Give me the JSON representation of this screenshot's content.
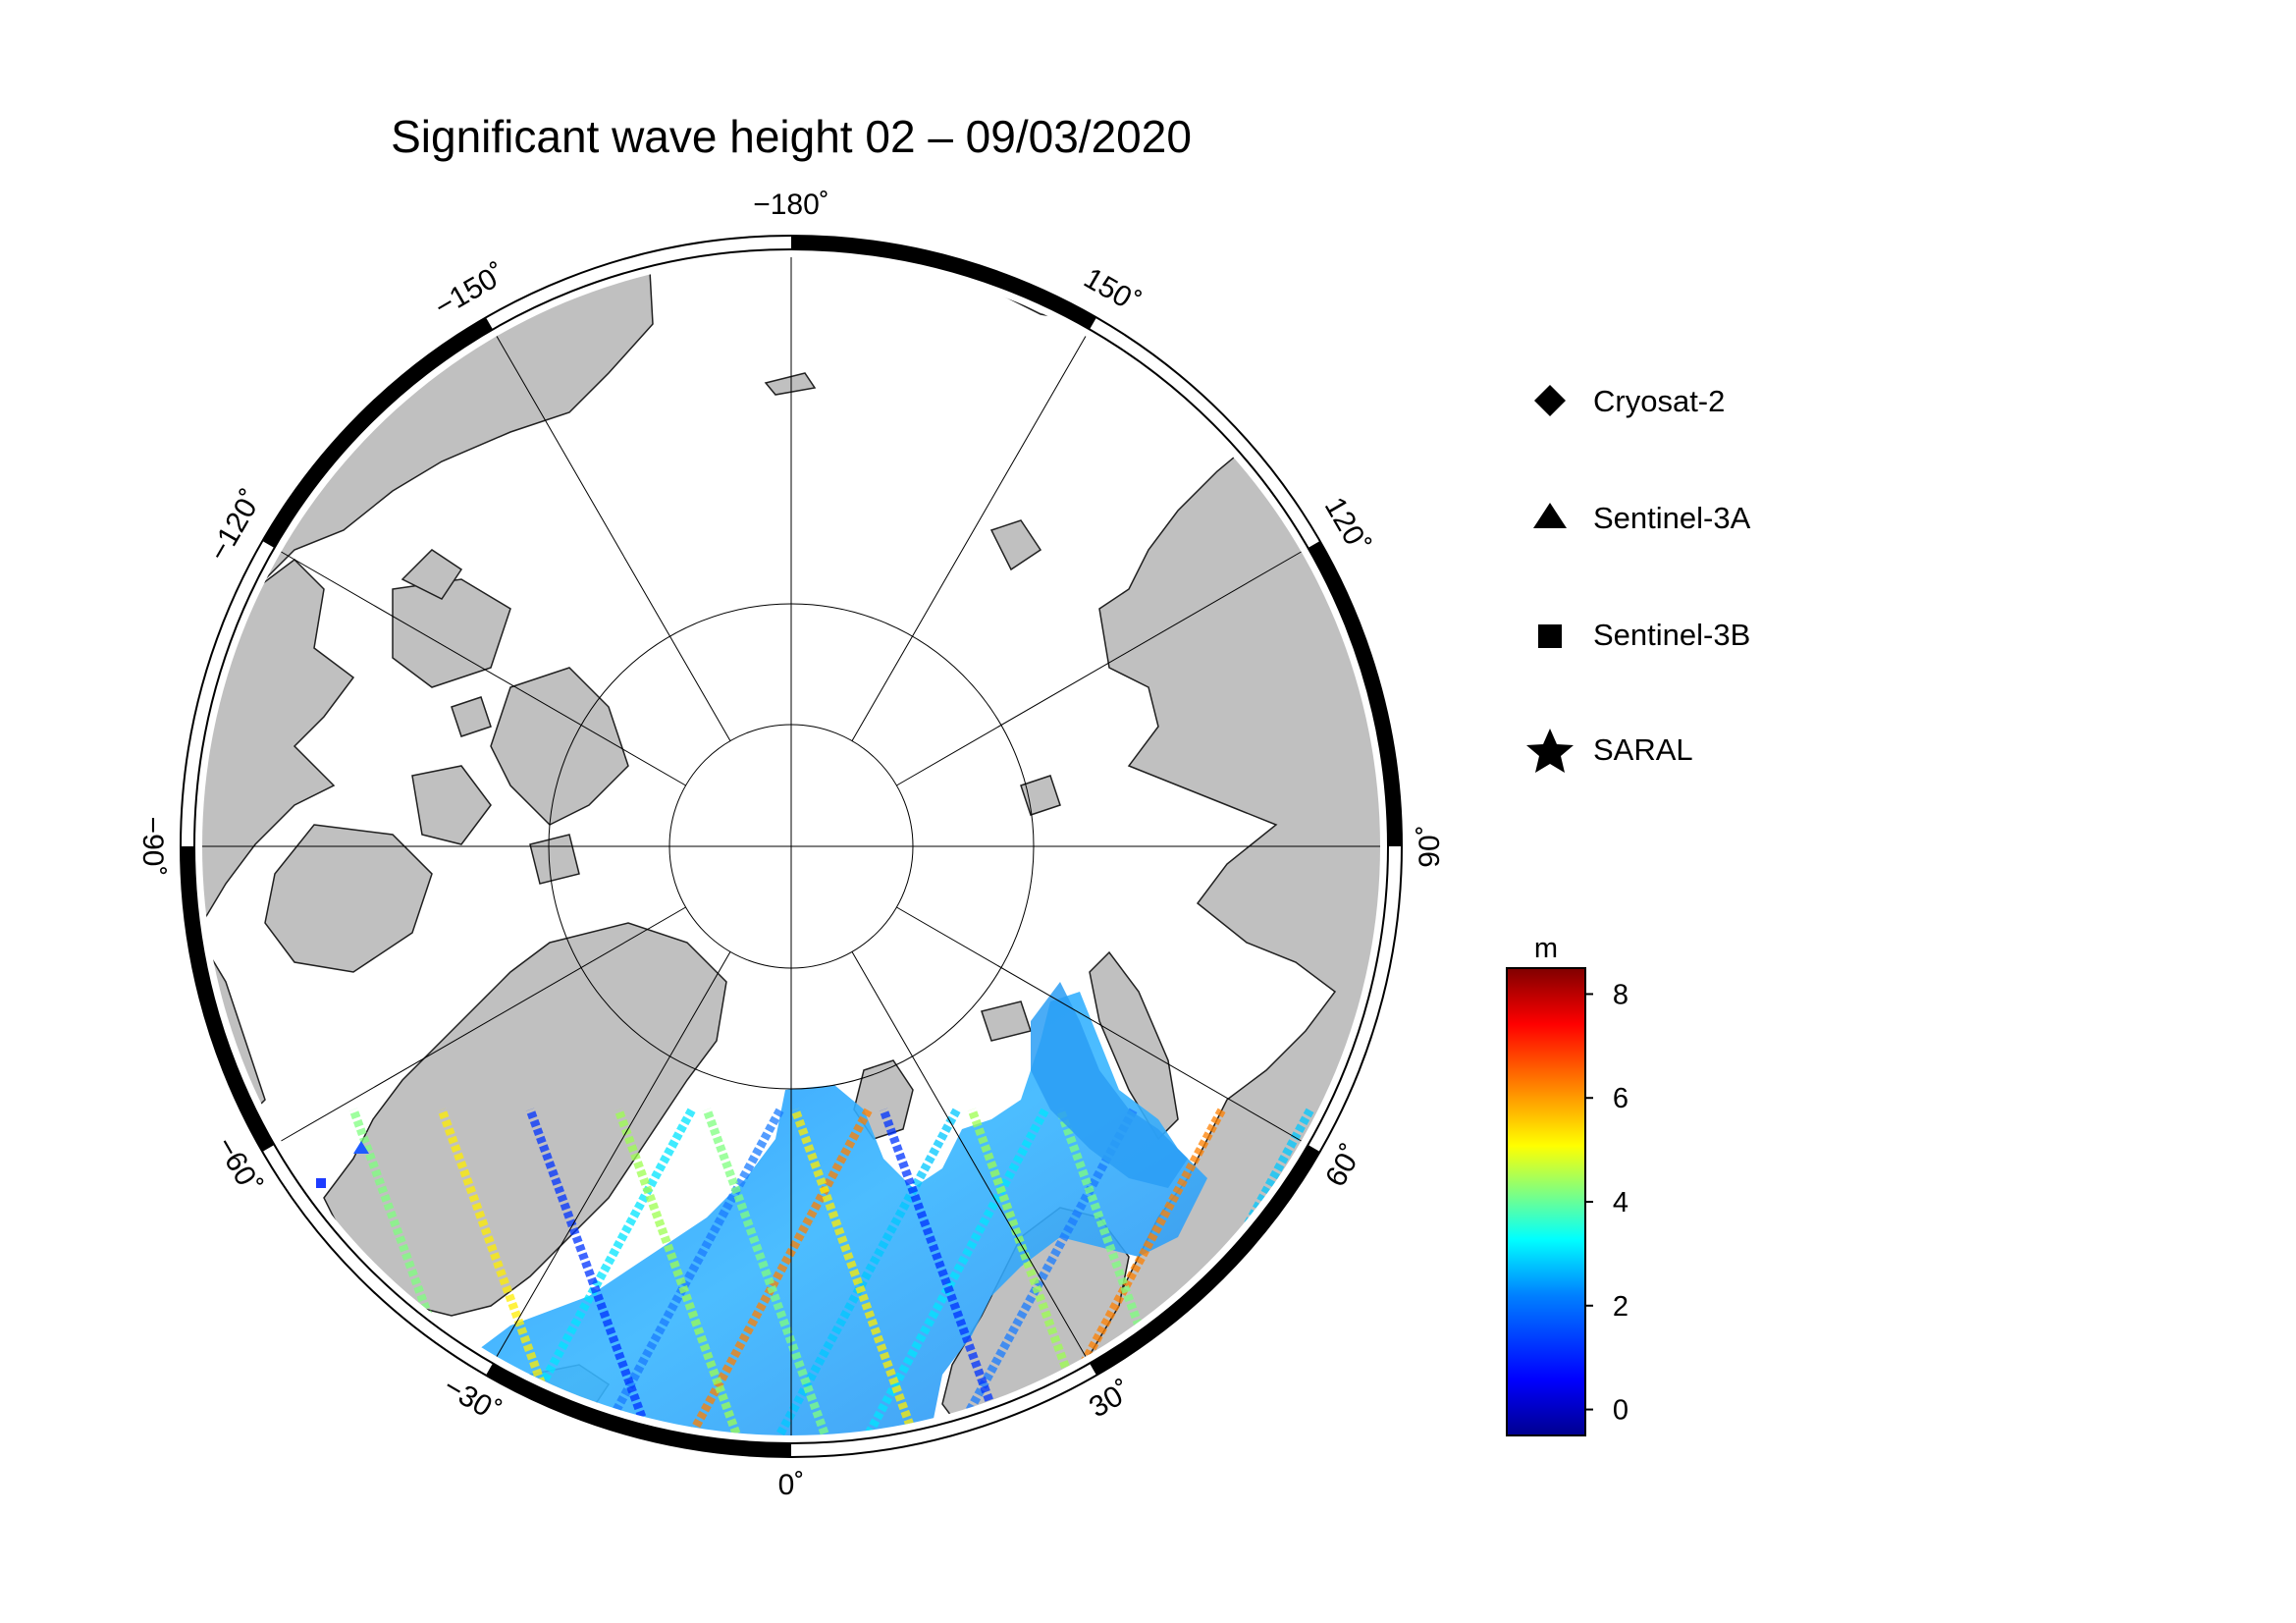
{
  "title": "Significant wave height 02 – 09/03/2020",
  "map": {
    "projection": "north-polar-stereographic",
    "longitude_labels": [
      {
        "deg": -180,
        "text": "−180˚"
      },
      {
        "deg": -150,
        "text": "−150˚"
      },
      {
        "deg": -120,
        "text": "−120˚"
      },
      {
        "deg": -90,
        "text": "−90˚"
      },
      {
        "deg": -60,
        "text": "−60˚"
      },
      {
        "deg": -30,
        "text": "−30˚"
      },
      {
        "deg": 0,
        "text": "0˚"
      },
      {
        "deg": 30,
        "text": "30˚"
      },
      {
        "deg": 60,
        "text": "60˚"
      },
      {
        "deg": 90,
        "text": "90˚"
      },
      {
        "deg": 120,
        "text": "120˚"
      },
      {
        "deg": 150,
        "text": "150˚"
      }
    ],
    "colors": {
      "land": "#c0c0c0",
      "ocean_ice": "#ffffff",
      "frame_dark": "#000000",
      "frame_light": "#ffffff"
    }
  },
  "legend": [
    {
      "icon": "diamond-icon",
      "label": "Cryosat-2"
    },
    {
      "icon": "triangle-icon",
      "label": "Sentinel-3A"
    },
    {
      "icon": "square-icon",
      "label": "Sentinel-3B"
    },
    {
      "icon": "star-icon",
      "label": "SARAL"
    }
  ],
  "colorbar": {
    "unit": "m",
    "min": -0.5,
    "max": 8.5,
    "ticks": [
      {
        "value": 0,
        "text": "0"
      },
      {
        "value": 2,
        "text": "2"
      },
      {
        "value": 4,
        "text": "4"
      },
      {
        "value": 6,
        "text": "6"
      },
      {
        "value": 8,
        "text": "8"
      }
    ],
    "colormap": [
      "#00008f",
      "#0000ff",
      "#0080ff",
      "#00ffff",
      "#80ff80",
      "#ffff00",
      "#ff8000",
      "#ff0000",
      "#800000"
    ]
  }
}
